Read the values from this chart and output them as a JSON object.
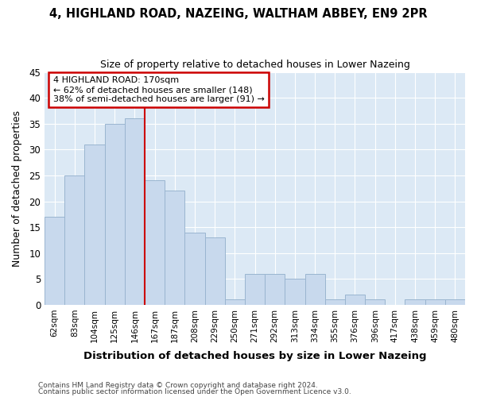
{
  "title1": "4, HIGHLAND ROAD, NAZEING, WALTHAM ABBEY, EN9 2PR",
  "title2": "Size of property relative to detached houses in Lower Nazeing",
  "xlabel": "Distribution of detached houses by size in Lower Nazeing",
  "ylabel": "Number of detached properties",
  "categories": [
    "62sqm",
    "83sqm",
    "104sqm",
    "125sqm",
    "146sqm",
    "167sqm",
    "187sqm",
    "208sqm",
    "229sqm",
    "250sqm",
    "271sqm",
    "292sqm",
    "313sqm",
    "334sqm",
    "355sqm",
    "376sqm",
    "396sqm",
    "417sqm",
    "438sqm",
    "459sqm",
    "480sqm"
  ],
  "values": [
    17,
    25,
    31,
    35,
    36,
    24,
    22,
    14,
    13,
    1,
    6,
    6,
    5,
    6,
    1,
    2,
    1,
    0,
    1,
    1,
    1
  ],
  "bar_color": "#c8d9ed",
  "bar_edge_color": "#9ab5d0",
  "vline_index": 5,
  "annotation_text_line1": "4 HIGHLAND ROAD: 170sqm",
  "annotation_text_line2": "← 62% of detached houses are smaller (148)",
  "annotation_text_line3": "38% of semi-detached houses are larger (91) →",
  "annotation_box_color": "#ffffff",
  "annotation_box_edge": "#cc0000",
  "vline_color": "#cc0000",
  "background_color": "#dce9f5",
  "grid_color": "#ffffff",
  "footer1": "Contains HM Land Registry data © Crown copyright and database right 2024.",
  "footer2": "Contains public sector information licensed under the Open Government Licence v3.0.",
  "ylim": [
    0,
    45
  ],
  "yticks": [
    0,
    5,
    10,
    15,
    20,
    25,
    30,
    35,
    40,
    45
  ]
}
